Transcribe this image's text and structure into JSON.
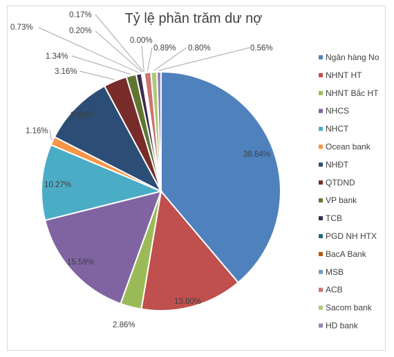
{
  "chart_data": {
    "type": "pie",
    "title": "Tỷ lệ phần trăm dư nợ",
    "categories": [
      "Ngân hàng No",
      "NHNT HT",
      "NHNT Bắc HT",
      "NHCS",
      "NHCT",
      "Ocean bank",
      "NHĐT",
      "QTDND",
      "VP bank",
      "TCB",
      "PGD NH HTX",
      "BacA Bank",
      "MSB",
      "ACB",
      "Sacom bank",
      "HD bank"
    ],
    "values": [
      38.84,
      13.8,
      2.86,
      15.59,
      10.27,
      1.16,
      9.63,
      3.16,
      1.34,
      0.73,
      0.2,
      0.17,
      0.0,
      0.89,
      0.8,
      0.56
    ],
    "labels": [
      "38.84%",
      "13.80%",
      "2.86%",
      "15.59%",
      "10.27%",
      "1.16%",
      "9.63%",
      "3.16%",
      "1.34%",
      "0.73%",
      "0.20%",
      "0.17%",
      "0.00%",
      "0.89%",
      "0.80%",
      "0.56%"
    ],
    "colors": [
      "#4f81bd",
      "#c0504d",
      "#9bbb59",
      "#8064a2",
      "#4bacc6",
      "#f79646",
      "#2c4d75",
      "#772c2a",
      "#5f7530",
      "#3a2c50",
      "#276a7c",
      "#b65708",
      "#729aca",
      "#cd7371",
      "#afc97a",
      "#9983b5"
    ],
    "legend": "right"
  }
}
